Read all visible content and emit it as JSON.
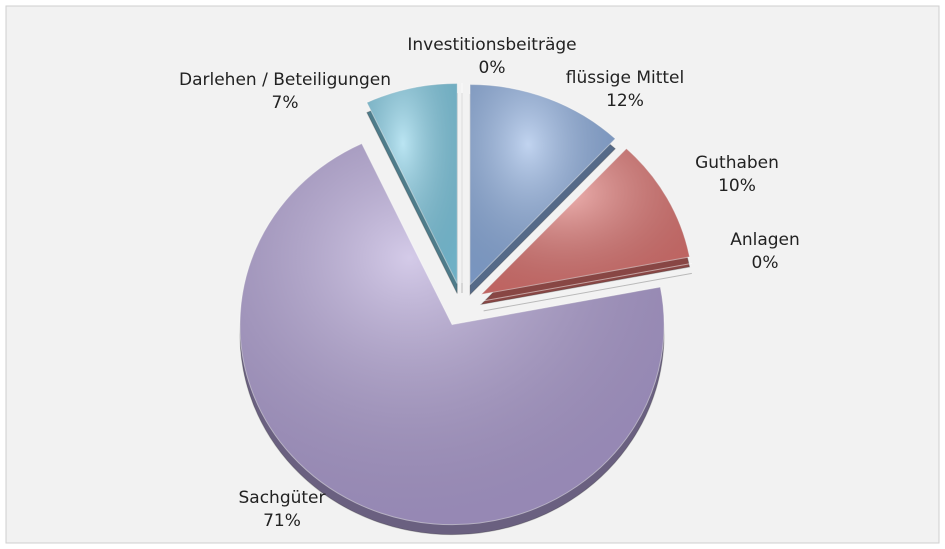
{
  "chart_data": {
    "type": "pie",
    "categories": [
      "flüssige Mittel",
      "Guthaben",
      "Anlagen",
      "Sachgüter",
      "Darlehen / Beteiligungen",
      "Investitionsbeiträge"
    ],
    "values": [
      12,
      10,
      0,
      71,
      7,
      0
    ],
    "value_labels": [
      "12%",
      "10%",
      "0%",
      "71%",
      "7%",
      "0%"
    ],
    "colors": [
      "#8eb0e3",
      "#e27572",
      "#a3c060",
      "#b1a0d6",
      "#82cfe8",
      "#c8c8c8"
    ]
  }
}
